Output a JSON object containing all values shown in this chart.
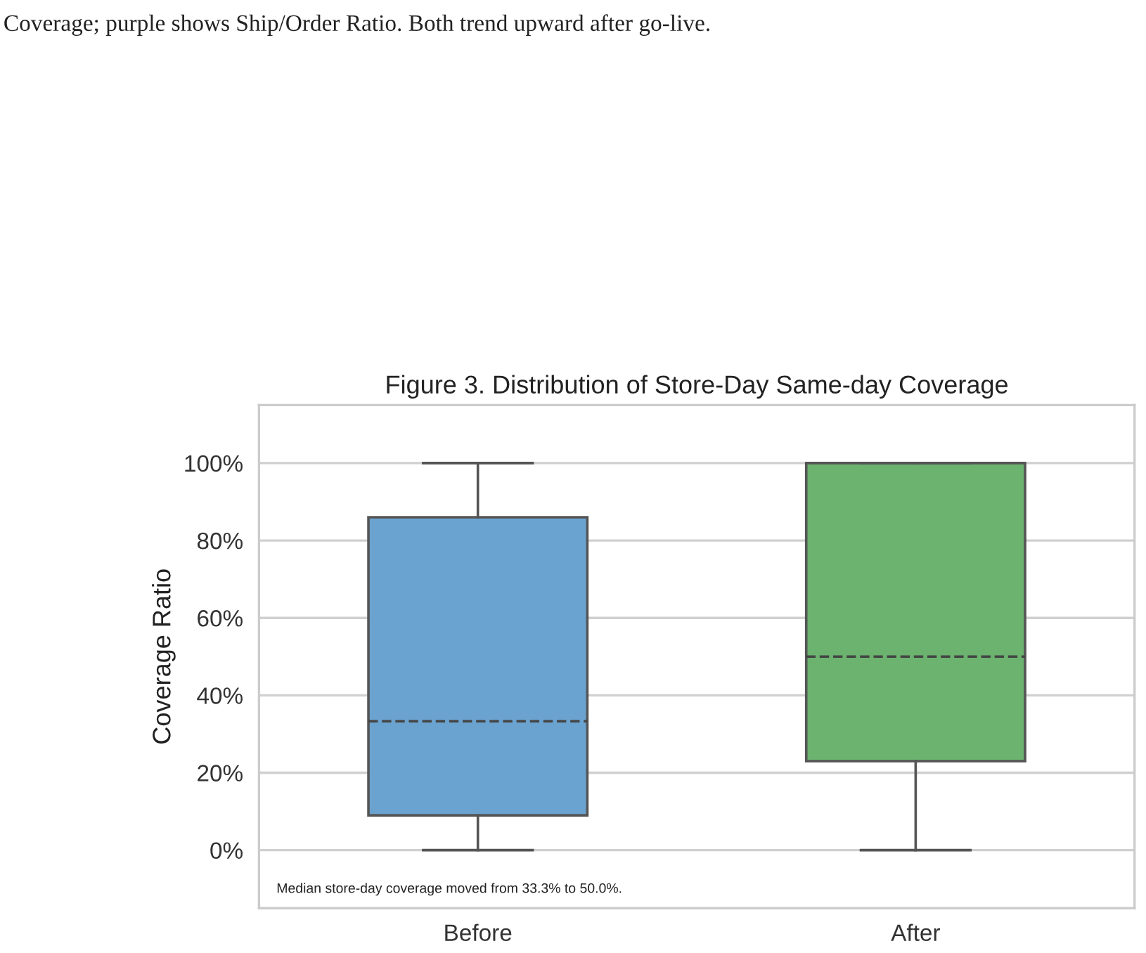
{
  "chart_data": {
    "type": "box",
    "title": "Figure 3. Distribution of Store-Day Same-day Coverage",
    "ylabel": "Coverage Ratio",
    "categories": [
      "Before",
      "After"
    ],
    "boxes": [
      {
        "low": 0,
        "q1": 9,
        "median": 33.3,
        "q3": 86,
        "high": 100
      },
      {
        "low": 0,
        "q1": 23,
        "median": 50,
        "q3": 100,
        "high": 100
      }
    ],
    "colors": [
      "#6aa3d0",
      "#6bb36f"
    ],
    "ylim": [
      -15,
      115
    ],
    "yticks": [
      {
        "value": 0,
        "label": "0%"
      },
      {
        "value": 20,
        "label": "20%"
      },
      {
        "value": 40,
        "label": "40%"
      },
      {
        "value": 60,
        "label": "60%"
      },
      {
        "value": 80,
        "label": "80%"
      },
      {
        "value": 100,
        "label": "100%"
      }
    ],
    "grid": "y",
    "annotations": [
      "Coverage; purple shows Ship/Order Ratio. Both trend upward after go-live.",
      "Median store-day coverage moved from 33.3% to 50.0%."
    ]
  }
}
